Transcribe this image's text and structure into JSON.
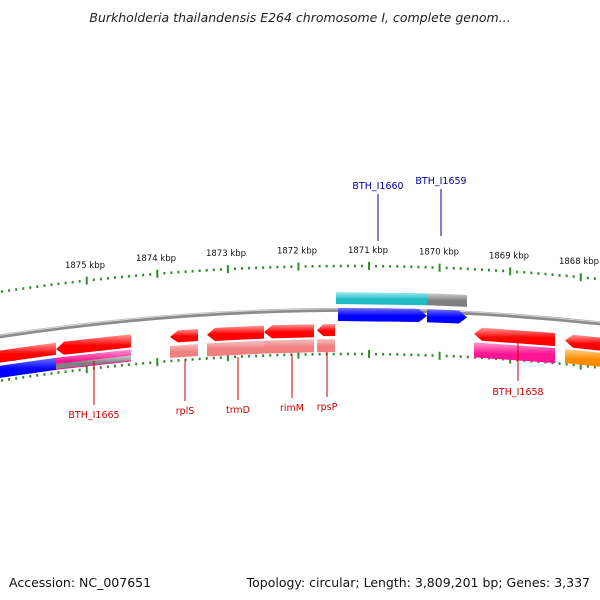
{
  "title": "Burkholderia thailandensis E264 chromosome I, complete genom...",
  "footer": {
    "accession": "Accession: NC_007651",
    "topology": "Topology: circular; Length: 3,809,201 bp; Genes: 3,337"
  },
  "colors": {
    "backbone": "#8c8c8c",
    "tick": "#2e8b2e",
    "cds": "#ff0000",
    "cds_light": "#f08080",
    "blue_feature": "#0000ff",
    "cyan_feature": "#1fbcc4",
    "magenta_feature": "#ff1493",
    "gray_feature": "#808080",
    "orange_feature": "#ff8c00",
    "label_blue": "#000099",
    "label_red": "#cc0000"
  },
  "kbp_labels": [
    {
      "text": "1875 kbp",
      "kbp": 1875
    },
    {
      "text": "1874 kbp",
      "kbp": 1874
    },
    {
      "text": "1873 kbp",
      "kbp": 1873
    },
    {
      "text": "1872 kbp",
      "kbp": 1872
    },
    {
      "text": "1871 kbp",
      "kbp": 1871
    },
    {
      "text": "1870 kbp",
      "kbp": 1870
    },
    {
      "text": "1869 kbp",
      "kbp": 1869
    },
    {
      "text": "1868 kbp",
      "kbp": 1868
    }
  ],
  "genes": [
    {
      "id": "BTH_I1660",
      "label": "BTH_I1660",
      "side": "top",
      "color": "label_blue"
    },
    {
      "id": "BTH_I1659",
      "label": "BTH_I1659",
      "side": "top",
      "color": "label_blue"
    },
    {
      "id": "BTH_I1665",
      "label": "BTH_I1665",
      "side": "bottom",
      "color": "label_red"
    },
    {
      "id": "rplS",
      "label": "rplS",
      "side": "bottom",
      "color": "label_red"
    },
    {
      "id": "trmD",
      "label": "trmD",
      "side": "bottom",
      "color": "label_red"
    },
    {
      "id": "rimM",
      "label": "rimM",
      "side": "bottom",
      "color": "label_red"
    },
    {
      "id": "rpsP",
      "label": "rpsP",
      "side": "bottom",
      "color": "label_red"
    },
    {
      "id": "BTH_I1658",
      "label": "BTH_I1658",
      "side": "bottom",
      "color": "label_red"
    }
  ]
}
